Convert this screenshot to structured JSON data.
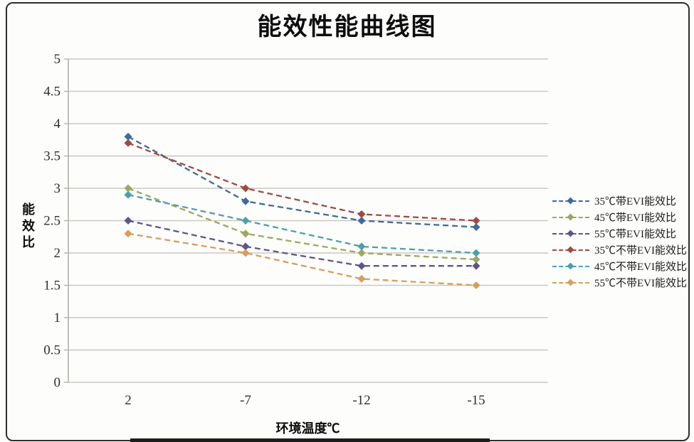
{
  "chart_data": {
    "type": "line",
    "title": "能效性能曲线图",
    "xlabel": "环境温度℃",
    "ylabel": "能效比",
    "categories": [
      "2",
      "-7",
      "-12",
      "-15"
    ],
    "yticks": [
      "5",
      "4.5",
      "4",
      "3.5",
      "3",
      "2.5",
      "2",
      "1.5",
      "1",
      "0.5",
      "0"
    ],
    "ylim": [
      0,
      5
    ],
    "grid": "horizontal",
    "line_style": "dashed",
    "marker": "diamond",
    "legend_position": "right",
    "colors": {
      "grid": "#ccc8c1",
      "axis": "#b4b0a9",
      "tick_text": "#2e2e2e"
    },
    "series": [
      {
        "name": "35℃带EVI能效比",
        "color": "#3f6a99",
        "values": [
          3.8,
          2.8,
          2.5,
          2.4
        ]
      },
      {
        "name": "45℃带EVI能效比",
        "color": "#9aa95f",
        "values": [
          3.0,
          2.3,
          2.0,
          1.9
        ]
      },
      {
        "name": "55℃带EVI能效比",
        "color": "#5f5588",
        "values": [
          2.5,
          2.1,
          1.8,
          1.8
        ]
      },
      {
        "name": "35℃不带EVI能效比",
        "color": "#9d4b43",
        "values": [
          3.7,
          3.0,
          2.6,
          2.5
        ]
      },
      {
        "name": "45℃不带EVI能效比",
        "color": "#4ba0ac",
        "values": [
          2.9,
          2.5,
          2.1,
          2.0
        ]
      },
      {
        "name": "55℃不带EVI能效比",
        "color": "#d99d5e",
        "values": [
          2.3,
          2.0,
          1.6,
          1.5
        ]
      }
    ]
  }
}
